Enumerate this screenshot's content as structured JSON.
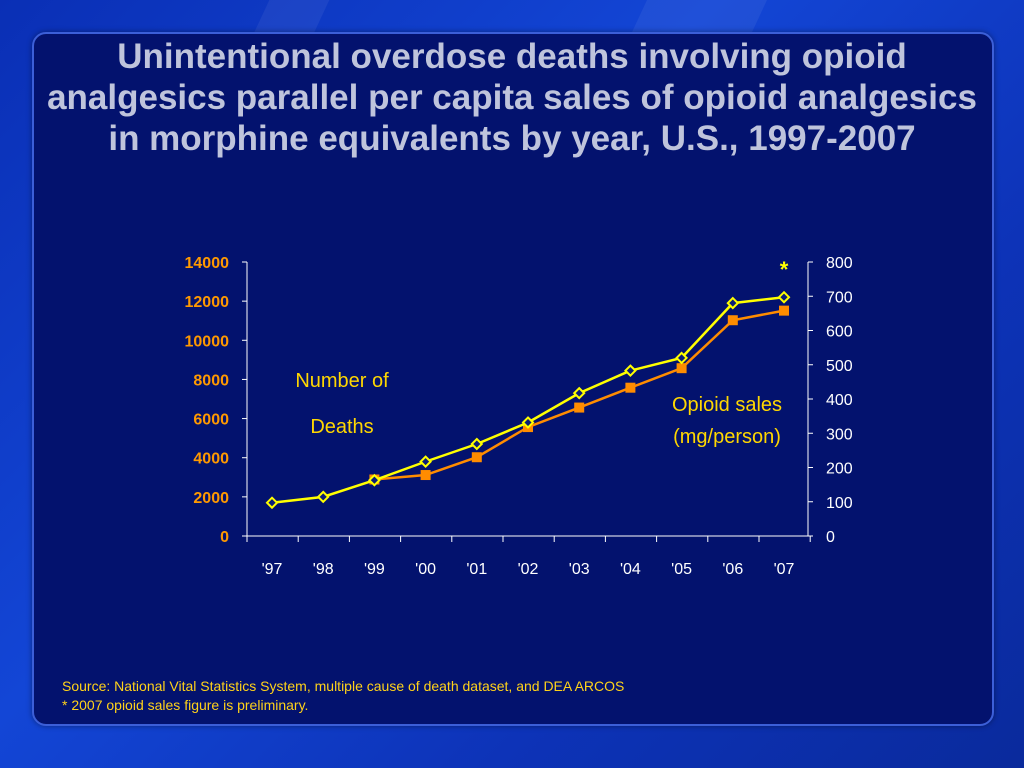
{
  "title": "Unintentional overdose deaths involving opioid analgesics parallel per capita sales of opioid analgesics in morphine equivalents by year, U.S., 1997-2007",
  "footnotes": [
    "Source: National Vital Statistics System, multiple cause of death dataset, and DEA ARCOS",
    "* 2007 opioid sales figure is preliminary."
  ],
  "colors": {
    "deaths_series": "#ffff00",
    "sales_series": "#ff8c00",
    "left_axis_labels": "#ff9900",
    "right_axis_labels": "#ffffff",
    "series_labels": "#ffd700"
  },
  "chart_data": {
    "type": "line",
    "categories": [
      "'97",
      "'98",
      "'99",
      "'00",
      "'01",
      "'02",
      "'03",
      "'04",
      "'05",
      "'06",
      "'07"
    ],
    "y_left": {
      "label_lines": [
        "Number of",
        "Deaths"
      ],
      "ylim": [
        0,
        14000
      ],
      "ticks": [
        0,
        2000,
        4000,
        6000,
        8000,
        10000,
        12000,
        14000
      ]
    },
    "y_right": {
      "label_lines": [
        "Opioid sales",
        "(mg/person)"
      ],
      "ylim": [
        0,
        800
      ],
      "ticks": [
        0,
        100,
        200,
        300,
        400,
        500,
        600,
        700,
        800
      ]
    },
    "series": [
      {
        "axis": "left",
        "marker": "diamond",
        "values": [
          1700,
          2000,
          2850,
          3800,
          4700,
          5800,
          7300,
          8450,
          9100,
          11900,
          12200
        ]
      },
      {
        "axis": "right",
        "marker": "square",
        "values": [
          null,
          null,
          165,
          178,
          230,
          318,
          375,
          433,
          490,
          630,
          658
        ]
      }
    ],
    "annotation": {
      "text": "*",
      "category": "'07"
    },
    "grid": false
  }
}
